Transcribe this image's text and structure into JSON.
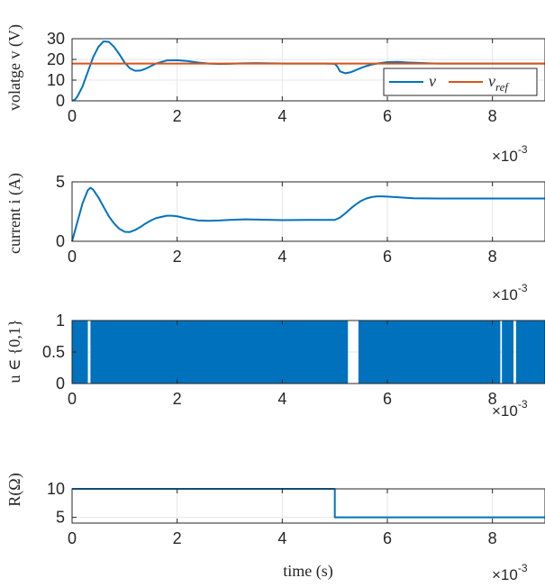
{
  "colors": {
    "blue": "#0072BD",
    "orange": "#D95319",
    "grid": "#e6e6e6",
    "axis": "#262626"
  },
  "chart_data": [
    {
      "type": "line",
      "ylabel": "volatge v (V)",
      "x_exponent": "×10",
      "x_exponent_power": "-3",
      "xlim": [
        0,
        0.009
      ],
      "ylim": [
        0,
        30
      ],
      "xticks": [
        "0",
        "2",
        "4",
        "6",
        "8"
      ],
      "yticks": [
        "0",
        "10",
        "20",
        "30"
      ],
      "legend": [
        "v",
        "v_ref"
      ],
      "legend_placement": "bottom-right",
      "grid": true,
      "series": [
        {
          "name": "v",
          "x": [
            0,
            5e-05,
            0.0001,
            0.0002,
            0.0003,
            0.0004,
            0.0005,
            0.0006,
            0.0007,
            0.0008,
            0.0009,
            0.001,
            0.0011,
            0.0012,
            0.0013,
            0.0014,
            0.0015,
            0.0016,
            0.0018,
            0.002,
            0.0022,
            0.0024,
            0.0026,
            0.0028,
            0.003,
            0.0032,
            0.0035,
            0.0038,
            0.0041,
            0.0045,
            0.0048,
            0.005,
            0.00505,
            0.0051,
            0.0052,
            0.0053,
            0.0054,
            0.0055,
            0.0056,
            0.0057,
            0.0058,
            0.006,
            0.0062,
            0.0064,
            0.0066,
            0.0068,
            0.007,
            0.0075,
            0.008,
            0.0085,
            0.009
          ],
          "y": [
            0,
            0.5,
            2,
            7,
            14,
            21,
            26,
            28.7,
            28.5,
            26,
            22.5,
            18.5,
            15.7,
            14.5,
            14.6,
            15.5,
            16.8,
            18,
            19.5,
            19.6,
            19.2,
            18.5,
            18,
            17.8,
            17.9,
            18.1,
            18.2,
            18.1,
            18,
            18,
            18,
            17.9,
            16.5,
            14.2,
            13.3,
            13.8,
            14.8,
            15.9,
            16.8,
            17.5,
            18,
            18.7,
            18.8,
            18.5,
            18.3,
            18.1,
            18,
            18,
            18,
            18,
            18
          ]
        },
        {
          "name": "v_ref",
          "x": [
            0,
            0.009
          ],
          "y": [
            18,
            18
          ]
        }
      ]
    },
    {
      "type": "line",
      "ylabel": "current i (A)",
      "x_exponent": "×10",
      "x_exponent_power": "-3",
      "xlim": [
        0,
        0.009
      ],
      "ylim": [
        0,
        5
      ],
      "xticks": [
        "0",
        "2",
        "4",
        "6",
        "8"
      ],
      "yticks": [
        "0",
        "5"
      ],
      "grid": true,
      "series": [
        {
          "x": [
            0,
            0.0001,
            0.0002,
            0.0003,
            0.00035,
            0.0004,
            0.0005,
            0.0006,
            0.0007,
            0.0008,
            0.0009,
            0.001,
            0.0011,
            0.0012,
            0.0013,
            0.0014,
            0.0015,
            0.0016,
            0.0018,
            0.0019,
            0.002,
            0.0022,
            0.0024,
            0.0026,
            0.0028,
            0.003,
            0.0033,
            0.0036,
            0.004,
            0.0045,
            0.005,
            0.0051,
            0.0052,
            0.0053,
            0.0054,
            0.0055,
            0.0056,
            0.0057,
            0.0058,
            0.0059,
            0.006,
            0.0062,
            0.0065,
            0.007,
            0.0075,
            0.008,
            0.0085,
            0.009
          ],
          "y": [
            0,
            1.6,
            3.2,
            4.3,
            4.5,
            4.35,
            3.7,
            2.9,
            2.1,
            1.5,
            1.05,
            0.8,
            0.78,
            0.95,
            1.2,
            1.5,
            1.75,
            1.95,
            2.15,
            2.15,
            2.1,
            1.9,
            1.75,
            1.72,
            1.75,
            1.8,
            1.85,
            1.82,
            1.78,
            1.8,
            1.8,
            2.0,
            2.35,
            2.75,
            3.1,
            3.4,
            3.6,
            3.72,
            3.78,
            3.78,
            3.76,
            3.7,
            3.62,
            3.6,
            3.6,
            3.6,
            3.6,
            3.6
          ]
        }
      ]
    },
    {
      "type": "area",
      "ylabel": "u ∈ {0,1}",
      "x_exponent": "×10",
      "x_exponent_power": "-3",
      "xlim": [
        0,
        0.009
      ],
      "ylim": [
        0,
        1
      ],
      "xticks": [
        "0",
        "2",
        "4",
        "6",
        "8"
      ],
      "yticks": [
        "0",
        "0.5",
        "1"
      ],
      "grid": true,
      "on_intervals": [
        [
          0,
          0.0003
        ],
        [
          0.00035,
          0.00525
        ],
        [
          0.00545,
          0.00815
        ],
        [
          0.00818,
          0.0084
        ],
        [
          0.00845,
          0.009
        ]
      ]
    },
    {
      "type": "line",
      "ylabel": "R(Ω)",
      "xlabel": "time (s)",
      "x_exponent": "×10",
      "x_exponent_power": "-3",
      "xlim": [
        0,
        0.009
      ],
      "ylim": [
        4,
        10
      ],
      "xticks": [
        "0",
        "2",
        "4",
        "6",
        "8"
      ],
      "yticks": [
        "5",
        "10"
      ],
      "grid": true,
      "series": [
        {
          "x": [
            0,
            0.005,
            0.005,
            0.009
          ],
          "y": [
            10,
            10,
            5,
            5
          ]
        }
      ]
    }
  ]
}
